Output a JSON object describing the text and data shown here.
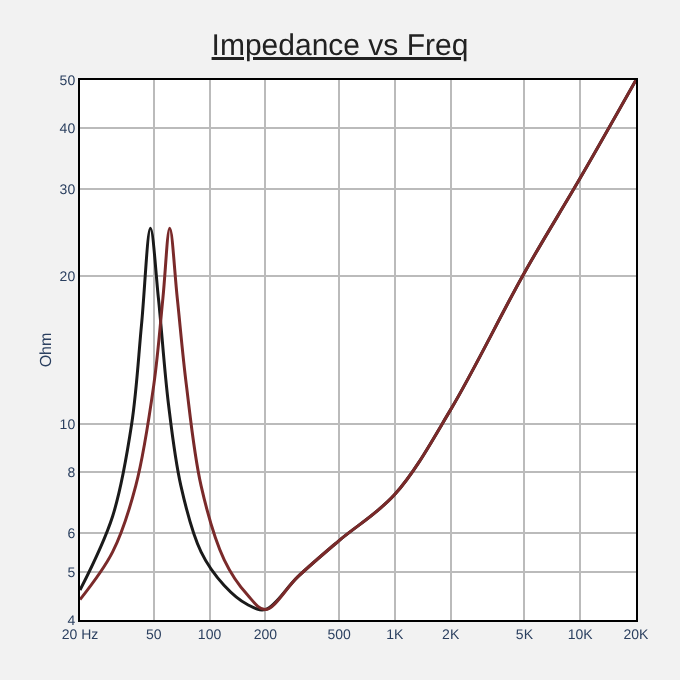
{
  "chart_data": {
    "type": "line",
    "title": "Impedance vs Freq",
    "ylabel": "Ohm",
    "log": "xy",
    "grid": true,
    "xlim": [
      20,
      20000
    ],
    "xticks": [
      {
        "value": 20,
        "label": "20 Hz"
      },
      50,
      100,
      200,
      500,
      {
        "value": 1000,
        "label": "1K"
      },
      {
        "value": 2000,
        "label": "2K"
      },
      {
        "value": 5000,
        "label": "5K"
      },
      {
        "value": 10000,
        "label": "10K"
      },
      {
        "value": 20000,
        "label": "20K"
      }
    ],
    "ylim": [
      4,
      50
    ],
    "yticks": [
      4,
      5,
      6,
      8,
      10,
      20,
      30,
      40,
      50
    ],
    "series": [
      {
        "color": "#1a1a1a",
        "x": [
          20,
          30,
          38,
          43,
          48,
          53,
          60,
          70,
          90,
          120,
          160,
          200,
          300,
          500,
          1000,
          2000,
          5000,
          10000,
          20000
        ],
        "values": [
          4.6,
          6.5,
          10,
          16,
          25,
          18,
          11,
          7.5,
          5.5,
          4.7,
          4.3,
          4.2,
          4.9,
          5.8,
          7.2,
          10.7,
          20.3,
          31.6,
          50
        ]
      },
      {
        "color": "#7a2a2a",
        "x": [
          20,
          30,
          40,
          50,
          56,
          61,
          67,
          75,
          90,
          120,
          160,
          200,
          300,
          500,
          1000,
          2000,
          5000,
          10000,
          20000
        ],
        "values": [
          4.4,
          5.5,
          7.5,
          12,
          18,
          25,
          18,
          12,
          7.5,
          5.3,
          4.5,
          4.2,
          4.9,
          5.8,
          7.2,
          10.7,
          20.3,
          31.6,
          50
        ]
      }
    ]
  }
}
